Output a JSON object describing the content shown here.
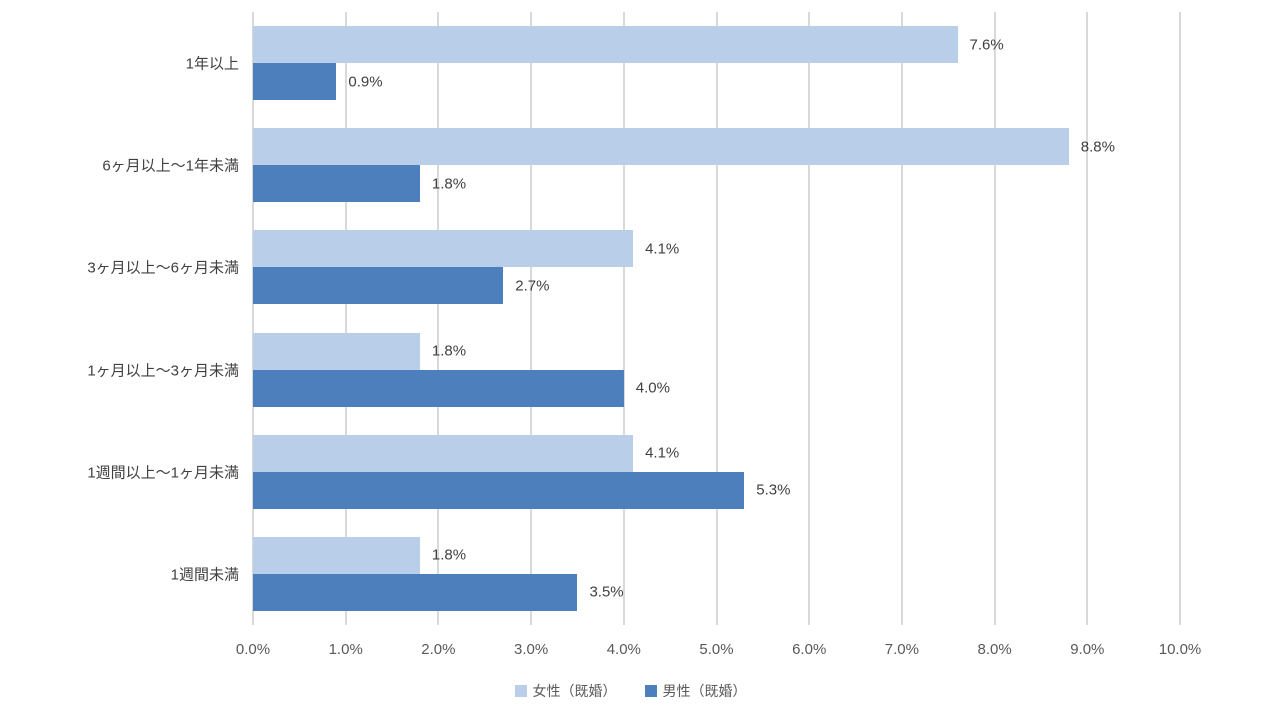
{
  "chart_data": {
    "type": "bar",
    "orientation": "horizontal",
    "title": "",
    "xlabel": "",
    "ylabel": "",
    "xlim": [
      0,
      10
    ],
    "grid": "vertical",
    "legend_position": "bottom",
    "categories": [
      "1年以上",
      "6ヶ月以上～1年未満",
      "3ヶ月以上～6ヶ月未満",
      "1ヶ月以上～3ヶ月未満",
      "1週間以上～1ヶ月未満",
      "1週間未満"
    ],
    "series": [
      {
        "name": "女性（既婚）",
        "key": "female-married",
        "color": "#b8cee9",
        "values": [
          7.6,
          8.8,
          4.1,
          1.8,
          4.1,
          1.8
        ],
        "labels": [
          "7.6%",
          "8.8%",
          "4.1%",
          "1.8%",
          "4.1%",
          "1.8%"
        ]
      },
      {
        "name": "男性（既婚）",
        "key": "male-married",
        "color": "#4d7fbc",
        "values": [
          0.9,
          1.8,
          2.7,
          4.0,
          5.3,
          3.5
        ],
        "labels": [
          "0.9%",
          "1.8%",
          "2.7%",
          "4.0%",
          "5.3%",
          "3.5%"
        ]
      }
    ],
    "x_ticks": [
      "0.0%",
      "1.0%",
      "2.0%",
      "3.0%",
      "4.0%",
      "5.0%",
      "6.0%",
      "7.0%",
      "8.0%",
      "9.0%",
      "10.0%"
    ]
  },
  "colors": {
    "series_female": "#b8cee9",
    "series_male": "#4d7fbc",
    "gridline": "#d9d9d9",
    "tick_text": "#595959",
    "label_text": "#404040",
    "background": "#ffffff"
  }
}
